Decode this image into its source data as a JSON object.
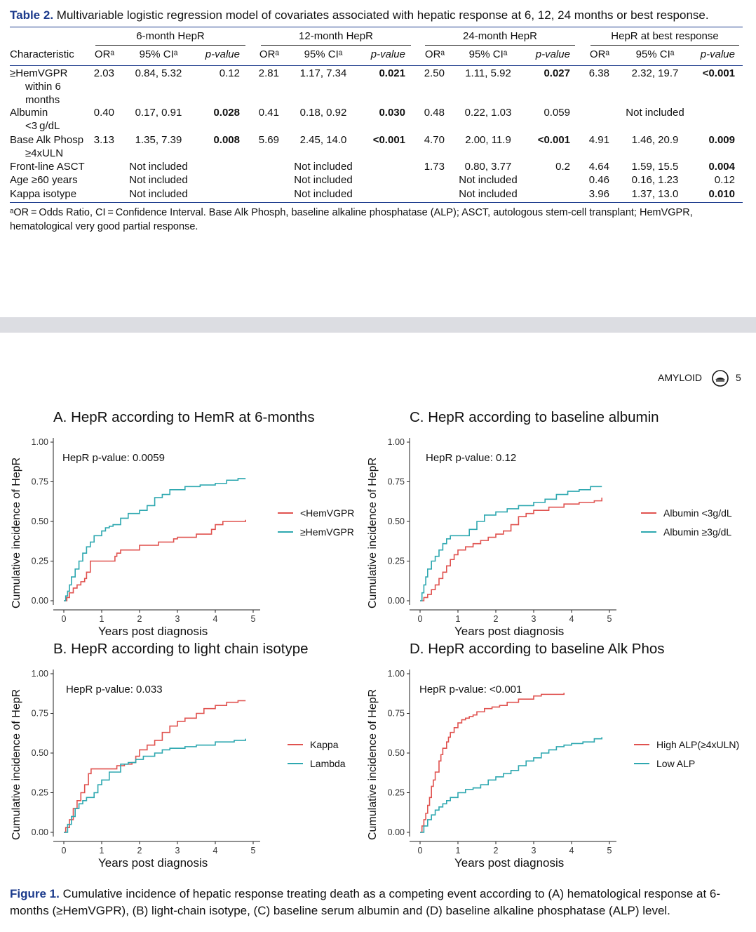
{
  "table": {
    "label": "Table 2.",
    "caption": "Multivariable logistic regression model of covariates associated with hepatic response at 6, 12, 24 months or best response.",
    "groups": [
      "6-month HepR",
      "12-month HepR",
      "24-month HepR",
      "HepR at best response"
    ],
    "col_headers": {
      "characteristic": "Characteristic",
      "or": "ORᵃ",
      "ci": "95% CIᵃ",
      "p": "p-value"
    },
    "rows": [
      {
        "label": [
          "≥HemVGPR",
          "within 6",
          "months"
        ],
        "cells": [
          [
            "2.03",
            "0.84, 5.32",
            "0.12"
          ],
          [
            "2.81",
            "1.17, 7.34",
            "0.021"
          ],
          [
            "2.50",
            "1.11, 5.92",
            "0.027"
          ],
          [
            "6.38",
            "2.32, 19.7",
            "<0.001"
          ]
        ],
        "bold_p": [
          false,
          true,
          true,
          true
        ]
      },
      {
        "label": [
          "Albumin",
          "<3 g/dL"
        ],
        "cells": [
          [
            "0.40",
            "0.17, 0.91",
            "0.028"
          ],
          [
            "0.41",
            "0.18, 0.92",
            "0.030"
          ],
          [
            "0.48",
            "0.22, 1.03",
            "0.059"
          ],
          [
            "",
            "Not included",
            ""
          ]
        ],
        "bold_p": [
          true,
          true,
          false,
          false
        ]
      },
      {
        "label": [
          "Base Alk Phosp",
          "≥4xULN"
        ],
        "cells": [
          [
            "3.13",
            "1.35, 7.39",
            "0.008"
          ],
          [
            "5.69",
            "2.45, 14.0",
            "<0.001"
          ],
          [
            "4.70",
            "2.00, 11.9",
            "<0.001"
          ],
          [
            "4.91",
            "1.46, 20.9",
            "0.009"
          ]
        ],
        "bold_p": [
          true,
          true,
          true,
          true
        ]
      },
      {
        "label": [
          "Front-line ASCT"
        ],
        "cells": [
          [
            "",
            "Not included",
            ""
          ],
          [
            "",
            "Not included",
            ""
          ],
          [
            "1.73",
            "0.80, 3.77",
            "0.2"
          ],
          [
            "4.64",
            "1.59, 15.5",
            "0.004"
          ]
        ],
        "bold_p": [
          false,
          false,
          false,
          true
        ]
      },
      {
        "label": [
          "Age ≥60 years"
        ],
        "cells": [
          [
            "",
            "Not included",
            ""
          ],
          [
            "",
            "Not included",
            ""
          ],
          [
            "",
            "Not included",
            ""
          ],
          [
            "0.46",
            "0.16, 1.23",
            "0.12"
          ]
        ],
        "bold_p": [
          false,
          false,
          false,
          false
        ]
      },
      {
        "label": [
          "Kappa isotype"
        ],
        "cells": [
          [
            "",
            "Not included",
            ""
          ],
          [
            "",
            "Not included",
            ""
          ],
          [
            "",
            "Not included",
            ""
          ],
          [
            "3.96",
            "1.37, 13.0",
            "0.010"
          ]
        ],
        "bold_p": [
          false,
          false,
          false,
          true
        ]
      }
    ],
    "footnote": "ᵃOR = Odds Ratio, CI = Confidence Interval. Base Alk Phosph, baseline alkaline phosphatase (ALP); ASCT, autologous stem-cell transplant; HemVGPR, hematological very good partial response."
  },
  "running_header": {
    "journal": "AMYLOID",
    "page": "5"
  },
  "colors": {
    "red": "#e0524f",
    "teal": "#2ea8b0",
    "accent": "#1b3a8c"
  },
  "figure": {
    "label": "Figure 1.",
    "caption": "Cumulative incidence of hepatic response treating death as a competing event according to (A) hematological response at 6-months (≥HemVGPR), (B) light-chain isotype, (C) baseline serum albumin and (D) baseline alkaline phosphatase (ALP) level."
  },
  "chart_data": [
    {
      "type": "line",
      "title": "A. HepR according to HemR at 6-months",
      "annotation": "HepR p-value: 0.0059",
      "xlabel": "Years post diagnosis",
      "ylabel": "Cumulative incidence of HepR",
      "xlim": [
        0,
        5
      ],
      "ylim": [
        0,
        1
      ],
      "xticks": [
        "0",
        "1",
        "2",
        "3",
        "4",
        "5"
      ],
      "yticks": [
        "0.00",
        "0.25",
        "0.50",
        "0.75",
        "1.00"
      ],
      "legend_position": "right",
      "series": [
        {
          "name": "<HemVGPR",
          "color": "#e0524f",
          "x": [
            0,
            0.08,
            0.15,
            0.25,
            0.35,
            0.45,
            0.55,
            0.6,
            0.7,
            1.3,
            1.35,
            1.4,
            1.5,
            1.9,
            2.0,
            2.5,
            2.9,
            3.0,
            3.5,
            3.9,
            4.0,
            4.2,
            4.8
          ],
          "y": [
            0,
            0.02,
            0.05,
            0.08,
            0.1,
            0.12,
            0.14,
            0.18,
            0.25,
            0.25,
            0.28,
            0.3,
            0.32,
            0.32,
            0.35,
            0.37,
            0.39,
            0.4,
            0.42,
            0.45,
            0.48,
            0.5,
            0.51
          ]
        },
        {
          "name": "≥HemVGPR",
          "color": "#2ea8b0",
          "x": [
            0,
            0.05,
            0.1,
            0.15,
            0.2,
            0.3,
            0.4,
            0.5,
            0.6,
            0.7,
            0.8,
            1.0,
            1.1,
            1.2,
            1.3,
            1.5,
            1.7,
            2.0,
            2.2,
            2.4,
            2.6,
            2.8,
            3.2,
            3.6,
            4.0,
            4.3,
            4.6,
            4.8
          ],
          "y": [
            0,
            0.03,
            0.06,
            0.1,
            0.15,
            0.2,
            0.25,
            0.3,
            0.34,
            0.37,
            0.41,
            0.44,
            0.46,
            0.47,
            0.48,
            0.52,
            0.55,
            0.57,
            0.6,
            0.65,
            0.67,
            0.7,
            0.72,
            0.73,
            0.74,
            0.76,
            0.77,
            0.77
          ]
        }
      ]
    },
    {
      "type": "line",
      "title": "B. HepR according to light chain isotype",
      "annotation": "HepR p-value: 0.033",
      "xlabel": "Years post diagnosis",
      "ylabel": "Cumulative incidence of HepR",
      "xlim": [
        0,
        5
      ],
      "ylim": [
        0,
        1
      ],
      "xticks": [
        "0",
        "1",
        "2",
        "3",
        "4",
        "5"
      ],
      "yticks": [
        "0.00",
        "0.25",
        "0.50",
        "0.75",
        "1.00"
      ],
      "legend_position": "right",
      "series": [
        {
          "name": "Kappa",
          "color": "#e0524f",
          "x": [
            0,
            0.05,
            0.15,
            0.25,
            0.35,
            0.45,
            0.55,
            0.65,
            0.72,
            1.3,
            1.4,
            1.6,
            1.8,
            1.9,
            2.0,
            2.2,
            2.4,
            2.6,
            2.8,
            3.0,
            3.2,
            3.5,
            3.7,
            4.0,
            4.3,
            4.6,
            4.8
          ],
          "y": [
            0,
            0.03,
            0.08,
            0.15,
            0.2,
            0.25,
            0.3,
            0.37,
            0.4,
            0.4,
            0.42,
            0.43,
            0.44,
            0.48,
            0.52,
            0.55,
            0.58,
            0.63,
            0.67,
            0.7,
            0.72,
            0.75,
            0.78,
            0.8,
            0.82,
            0.83,
            0.83
          ]
        },
        {
          "name": "Lambda",
          "color": "#2ea8b0",
          "x": [
            0,
            0.1,
            0.2,
            0.3,
            0.4,
            0.5,
            0.6,
            0.8,
            0.9,
            1.0,
            1.2,
            1.5,
            1.7,
            1.9,
            2.1,
            2.4,
            2.6,
            2.8,
            3.2,
            3.5,
            4.0,
            4.5,
            4.8
          ],
          "y": [
            0,
            0.05,
            0.1,
            0.15,
            0.18,
            0.2,
            0.22,
            0.25,
            0.3,
            0.33,
            0.38,
            0.43,
            0.44,
            0.46,
            0.48,
            0.5,
            0.52,
            0.53,
            0.54,
            0.55,
            0.57,
            0.58,
            0.59
          ]
        }
      ]
    },
    {
      "type": "line",
      "title": "C. HepR according to baseline albumin",
      "annotation": "HepR p-value: 0.12",
      "xlabel": "Years post diagnosis",
      "ylabel": "Cumulative incidence of HepR",
      "xlim": [
        0,
        5
      ],
      "ylim": [
        0,
        1
      ],
      "xticks": [
        "0",
        "1",
        "2",
        "3",
        "4",
        "5"
      ],
      "yticks": [
        "0.00",
        "0.25",
        "0.50",
        "0.75",
        "1.00"
      ],
      "legend_position": "right",
      "series": [
        {
          "name": "Albumin <3g/dL",
          "color": "#e0524f",
          "x": [
            0,
            0.1,
            0.2,
            0.3,
            0.4,
            0.5,
            0.6,
            0.7,
            0.8,
            0.9,
            1.0,
            1.2,
            1.4,
            1.6,
            1.8,
            2.0,
            2.2,
            2.4,
            2.6,
            2.8,
            3.0,
            3.4,
            3.8,
            4.2,
            4.6,
            4.8
          ],
          "y": [
            0,
            0.02,
            0.04,
            0.07,
            0.1,
            0.14,
            0.18,
            0.22,
            0.26,
            0.29,
            0.32,
            0.34,
            0.36,
            0.38,
            0.4,
            0.42,
            0.44,
            0.48,
            0.53,
            0.55,
            0.57,
            0.59,
            0.61,
            0.62,
            0.63,
            0.65
          ]
        },
        {
          "name": "Albumin ≥3g/dL",
          "color": "#2ea8b0",
          "x": [
            0,
            0.05,
            0.1,
            0.15,
            0.2,
            0.3,
            0.4,
            0.5,
            0.6,
            0.7,
            0.8,
            1.0,
            1.3,
            1.5,
            1.7,
            2.0,
            2.3,
            2.6,
            3.0,
            3.3,
            3.6,
            3.9,
            4.2,
            4.5,
            4.8
          ],
          "y": [
            0,
            0.05,
            0.1,
            0.15,
            0.2,
            0.25,
            0.28,
            0.32,
            0.36,
            0.39,
            0.41,
            0.41,
            0.45,
            0.5,
            0.54,
            0.56,
            0.58,
            0.6,
            0.62,
            0.64,
            0.67,
            0.69,
            0.7,
            0.72,
            0.72
          ]
        }
      ]
    },
    {
      "type": "line",
      "title": "D. HepR according to baseline Alk Phos",
      "annotation": "HepR p-value: <0.001",
      "xlabel": "Years post diagnosis",
      "ylabel": "Cumulative incidence of HepR",
      "xlim": [
        0,
        5
      ],
      "ylim": [
        0,
        1
      ],
      "xticks": [
        "0",
        "1",
        "2",
        "3",
        "4",
        "5"
      ],
      "yticks": [
        "0.00",
        "0.25",
        "0.50",
        "0.75",
        "1.00"
      ],
      "legend_position": "right",
      "series": [
        {
          "name": "High ALP(≥4xULN)",
          "color": "#e0524f",
          "x": [
            0,
            0.05,
            0.1,
            0.15,
            0.2,
            0.25,
            0.3,
            0.35,
            0.4,
            0.5,
            0.55,
            0.6,
            0.7,
            0.75,
            0.8,
            0.9,
            1.0,
            1.1,
            1.2,
            1.3,
            1.4,
            1.5,
            1.7,
            1.9,
            2.1,
            2.3,
            2.6,
            3.0,
            3.2,
            3.8
          ],
          "y": [
            0,
            0.04,
            0.08,
            0.12,
            0.17,
            0.22,
            0.29,
            0.33,
            0.38,
            0.45,
            0.49,
            0.53,
            0.57,
            0.6,
            0.63,
            0.66,
            0.69,
            0.71,
            0.72,
            0.73,
            0.74,
            0.76,
            0.78,
            0.79,
            0.8,
            0.82,
            0.84,
            0.86,
            0.87,
            0.88
          ]
        },
        {
          "name": "Low ALP",
          "color": "#2ea8b0",
          "x": [
            0,
            0.1,
            0.2,
            0.3,
            0.4,
            0.5,
            0.6,
            0.7,
            0.8,
            1.0,
            1.2,
            1.4,
            1.6,
            1.8,
            2.0,
            2.2,
            2.4,
            2.6,
            2.8,
            3.0,
            3.2,
            3.4,
            3.6,
            3.8,
            4.0,
            4.3,
            4.6,
            4.8
          ],
          "y": [
            0,
            0.04,
            0.08,
            0.11,
            0.14,
            0.16,
            0.18,
            0.2,
            0.22,
            0.25,
            0.27,
            0.28,
            0.3,
            0.33,
            0.35,
            0.37,
            0.39,
            0.42,
            0.45,
            0.47,
            0.5,
            0.52,
            0.54,
            0.55,
            0.56,
            0.57,
            0.59,
            0.6
          ]
        }
      ]
    }
  ]
}
